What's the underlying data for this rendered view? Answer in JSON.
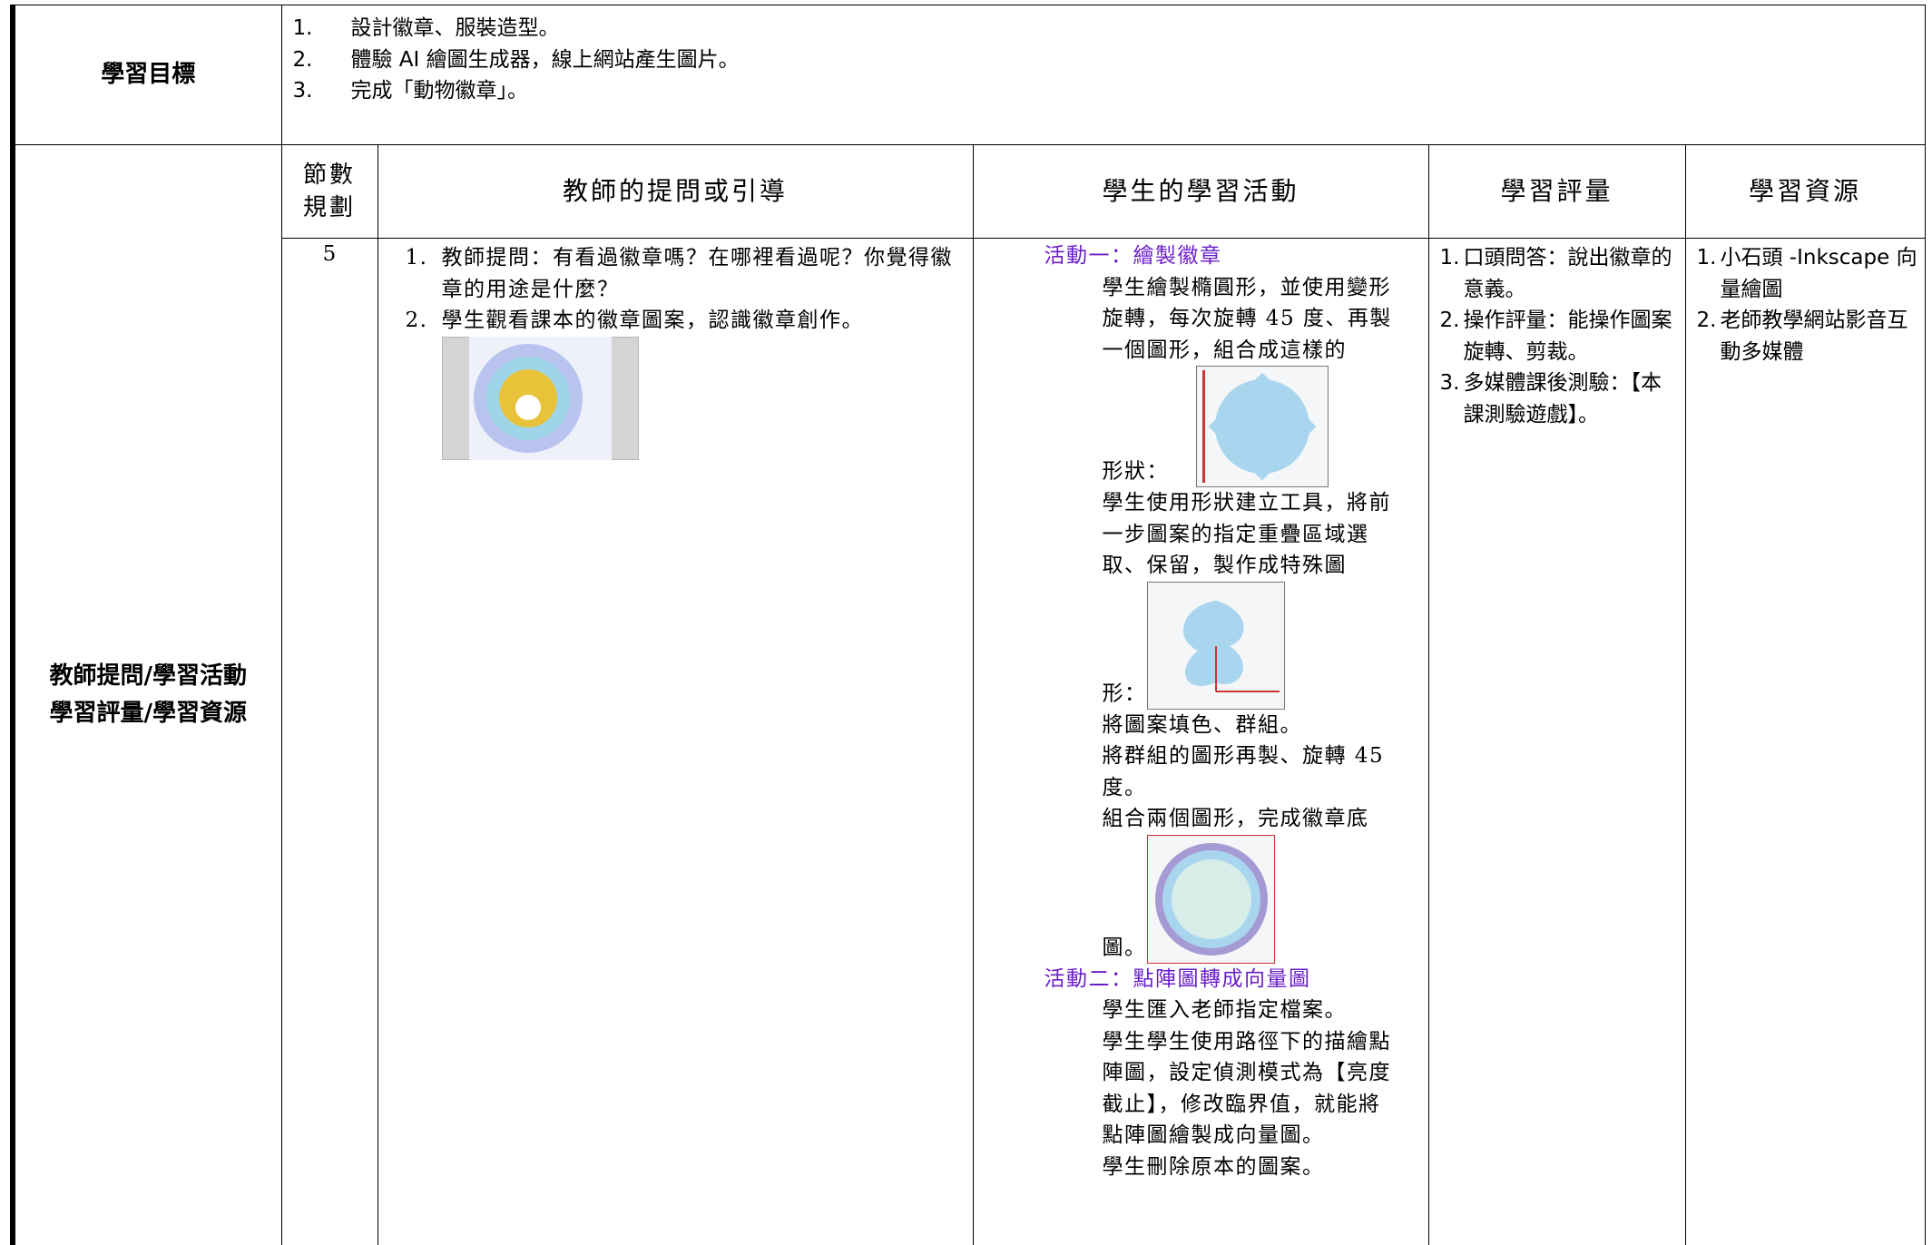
{
  "objectives": {
    "label": "學習目標",
    "items": [
      {
        "num": "1.",
        "text": "設計徽章、服裝造型。"
      },
      {
        "num": "2.",
        "text": "體驗 AI 繪圖生成器，線上網站產生圖片。"
      },
      {
        "num": "3.",
        "text": "完成「動物徽章」。"
      }
    ]
  },
  "section": {
    "label_lines": [
      "教師提問/學習活動",
      "學習評量/學習資源"
    ]
  },
  "headers": {
    "sessions": [
      "節數",
      "規劃"
    ],
    "teacher": "教師的提問或引導",
    "student": "學生的學習活動",
    "assessment": "學習評量",
    "resources": "學習資源"
  },
  "row": {
    "sessions": "5",
    "teacher": [
      {
        "num": "1.",
        "text": "教師提問：有看過徽章嗎？在哪裡看過呢？你覺得徽章的用途是什麼？"
      },
      {
        "num": "2.",
        "text": "學生觀看課本的徽章圖案，認識徽章創作。"
      }
    ],
    "student": [
      {
        "title": "活動一：繪製徽章",
        "paragraphs": [
          {
            "before": "學生繪製橢圓形，並使用變形旋轉，每次旋轉 45 度、再製一個圖形，組合成這樣的",
            "after": "形狀："
          },
          {
            "before": "學生使用形狀建立工具，將前一步圖案的指定重疊區域選取、保留，製作成特殊圖",
            "after": "形："
          },
          {
            "before": "將圖案填色、群組。"
          },
          {
            "before": "將群組的圖形再製、旋轉 45 度。"
          },
          {
            "before": "組合兩個圖形，完成徽章底",
            "after": "圖。"
          }
        ]
      },
      {
        "title": "活動二：點陣圖轉成向量圖",
        "paragraphs": [
          {
            "before": "學生匯入老師指定檔案。"
          },
          {
            "before": "學生學生使用路徑下的描繪點陣圖，設定偵測模式為【亮度截止】，修改臨界值，就能將點陣圖繪製成向量圖。"
          },
          {
            "before": "學生刪除原本的圖案。"
          }
        ]
      }
    ],
    "assessment": [
      {
        "num": "1.",
        "text": "口頭問答：說出徽章的意義。"
      },
      {
        "num": "2.",
        "text": "操作評量：能操作圖案旋轉、剪裁。"
      },
      {
        "num": "3.",
        "text": "多媒體課後測驗：【本課測驗遊戲】。"
      }
    ],
    "resources": [
      {
        "num": "1.",
        "text": "小石頭 -Inkscape 向量繪圖"
      },
      {
        "num": "2.",
        "text": "老師教學網站影音互動多媒體"
      }
    ]
  }
}
